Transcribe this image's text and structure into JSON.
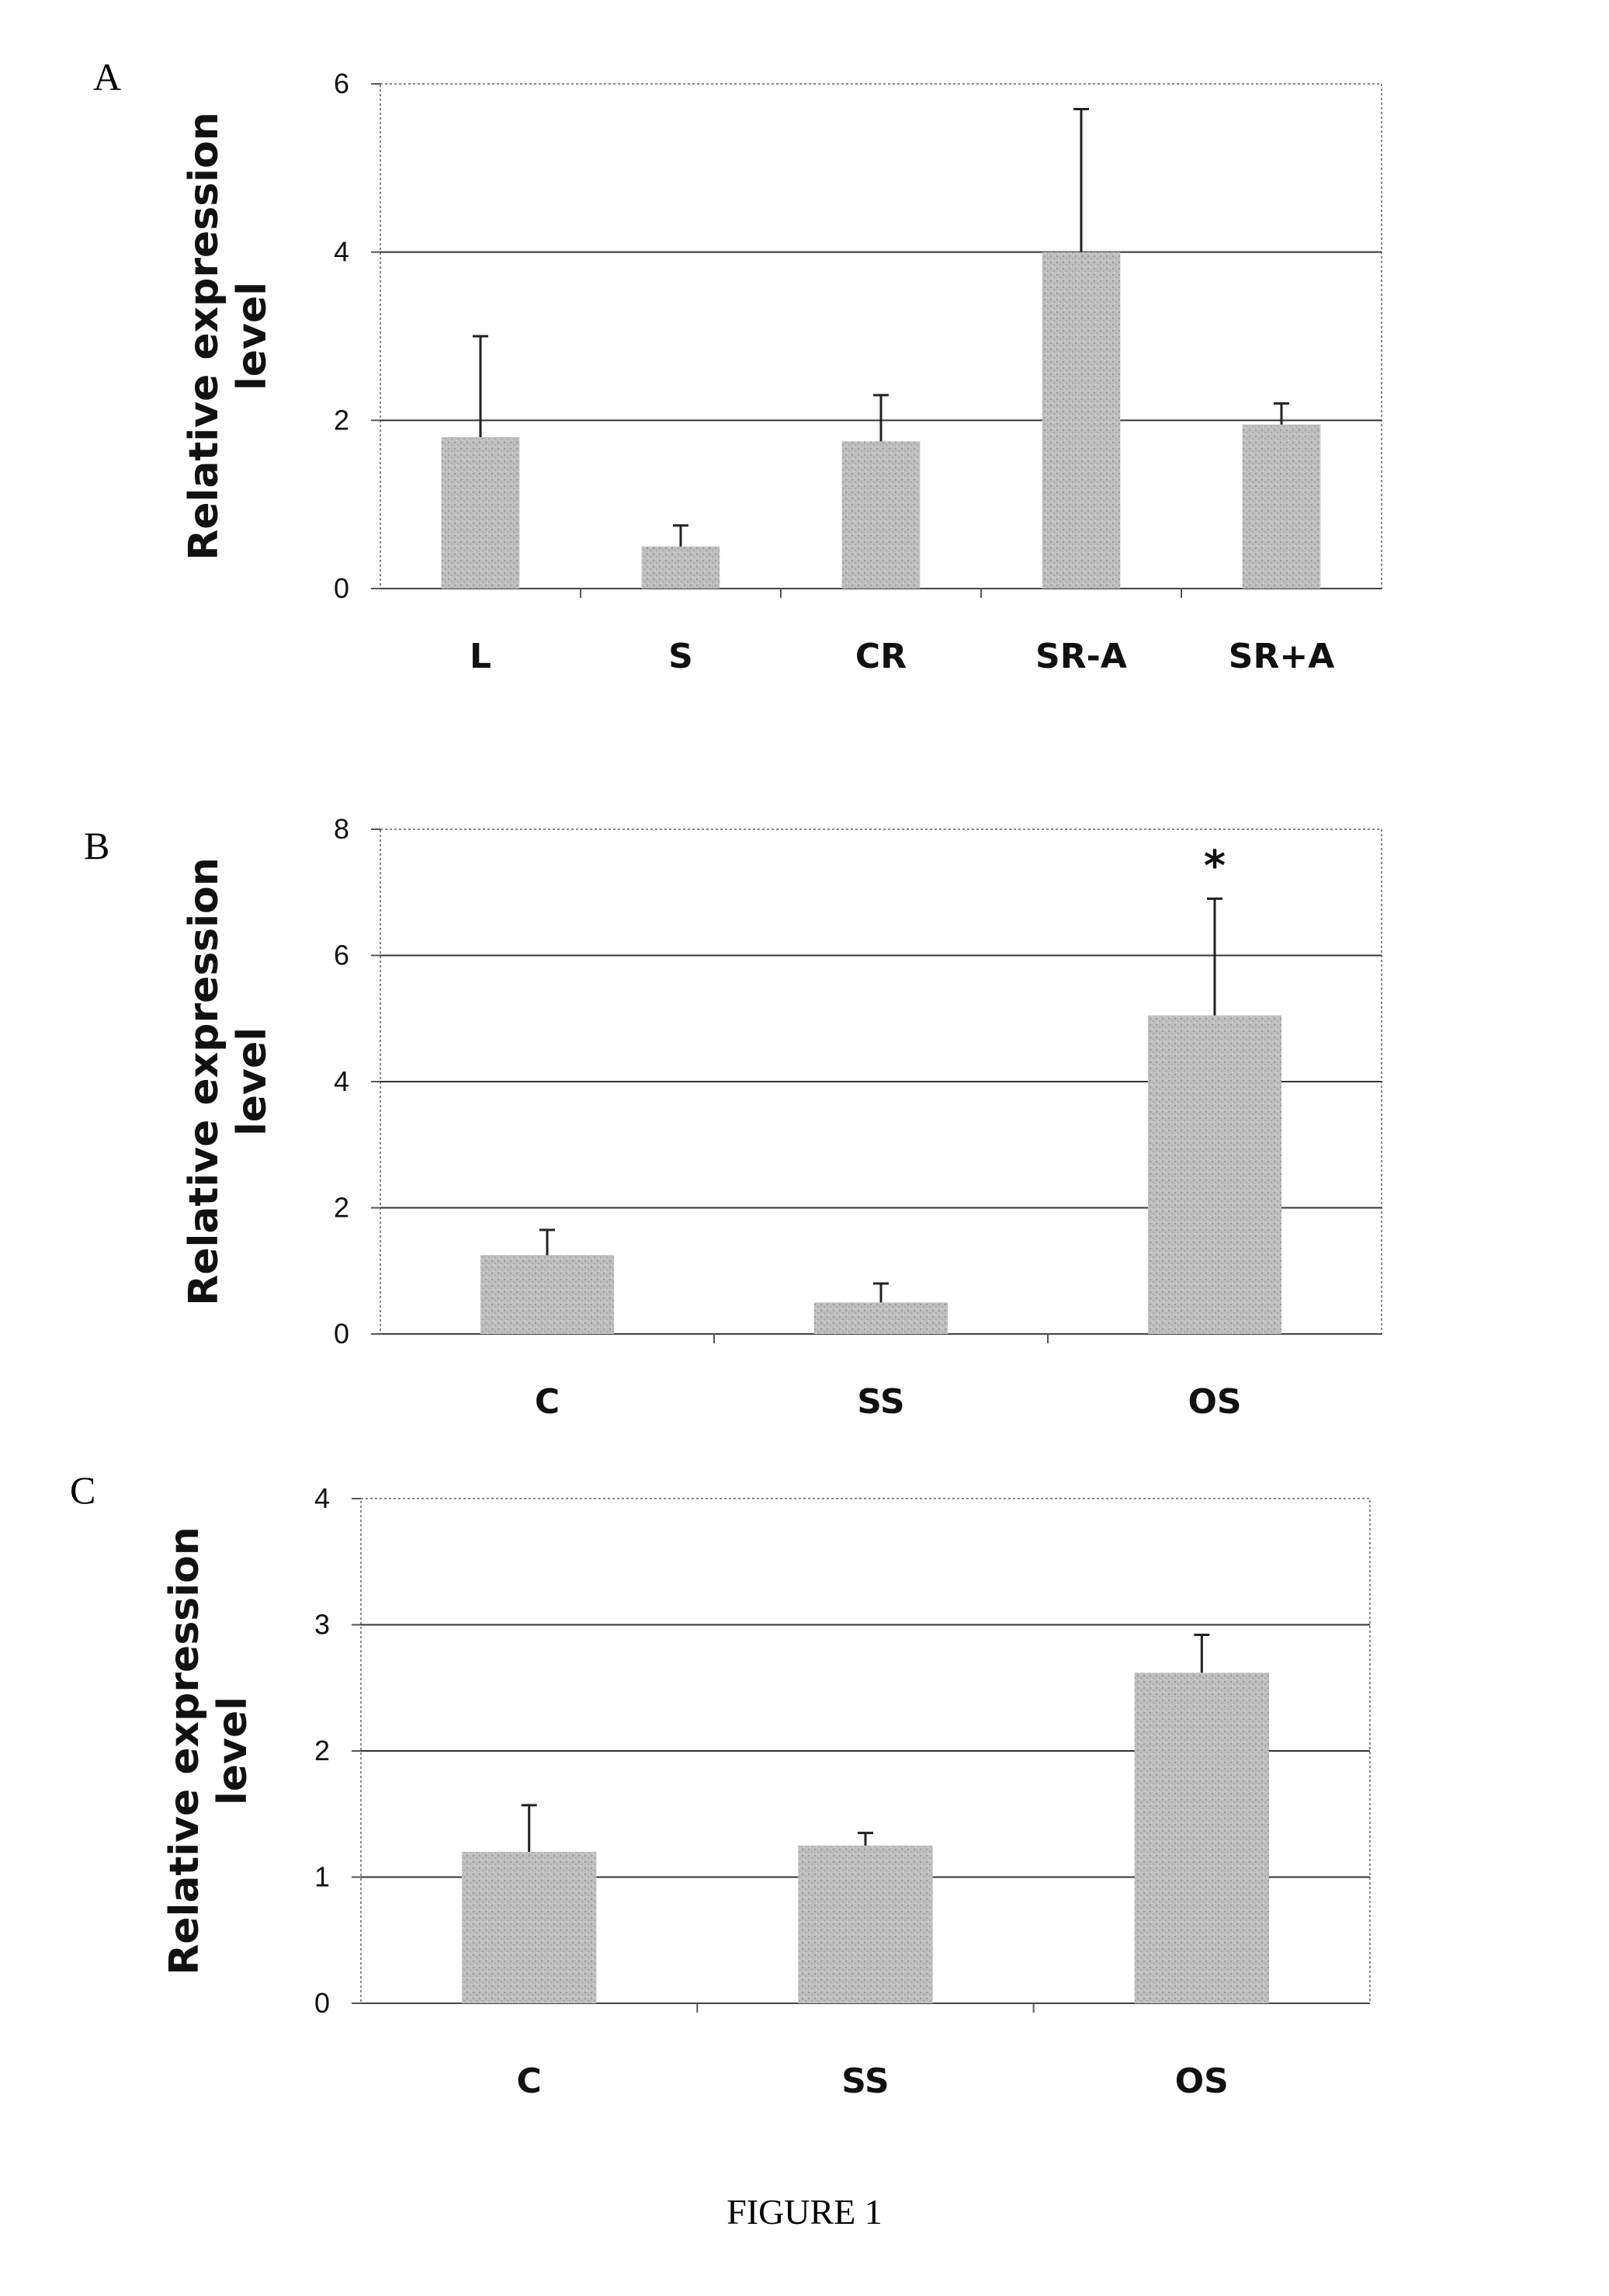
{
  "figure": {
    "caption": "FIGURE 1"
  },
  "chart_data": [
    {
      "panel": "A",
      "type": "bar",
      "categories": [
        "L",
        "S",
        "CR",
        "SR-A",
        "SR+A"
      ],
      "values": [
        1.8,
        0.5,
        1.75,
        4.0,
        1.95
      ],
      "error_plus": [
        1.2,
        0.25,
        0.55,
        1.7,
        0.25
      ],
      "ylabel": "Relative expression level",
      "ylim": [
        0,
        6
      ],
      "yticks": [
        "0",
        "2",
        "4",
        "6"
      ],
      "grid": true,
      "annotations": [],
      "bar_color": "#b8b8b8"
    },
    {
      "panel": "B",
      "type": "bar",
      "categories": [
        "C",
        "SS",
        "OS"
      ],
      "values": [
        1.25,
        0.5,
        5.05
      ],
      "error_plus": [
        0.4,
        0.3,
        1.85
      ],
      "ylabel": "Relative expression level",
      "ylim": [
        0,
        8
      ],
      "yticks": [
        "0",
        "2",
        "4",
        "6",
        "8"
      ],
      "grid": true,
      "annotations": [
        {
          "category": "OS",
          "text": "*"
        }
      ],
      "bar_color": "#b8b8b8"
    },
    {
      "panel": "C",
      "type": "bar",
      "categories": [
        "C",
        "SS",
        "OS"
      ],
      "values": [
        1.2,
        1.25,
        2.62
      ],
      "error_plus": [
        0.37,
        0.1,
        0.3
      ],
      "ylabel": "Relative expression level",
      "ylim": [
        0,
        4
      ],
      "yticks": [
        "0",
        "1",
        "2",
        "3",
        "4"
      ],
      "grid": true,
      "annotations": [],
      "bar_color": "#b8b8b8"
    }
  ]
}
